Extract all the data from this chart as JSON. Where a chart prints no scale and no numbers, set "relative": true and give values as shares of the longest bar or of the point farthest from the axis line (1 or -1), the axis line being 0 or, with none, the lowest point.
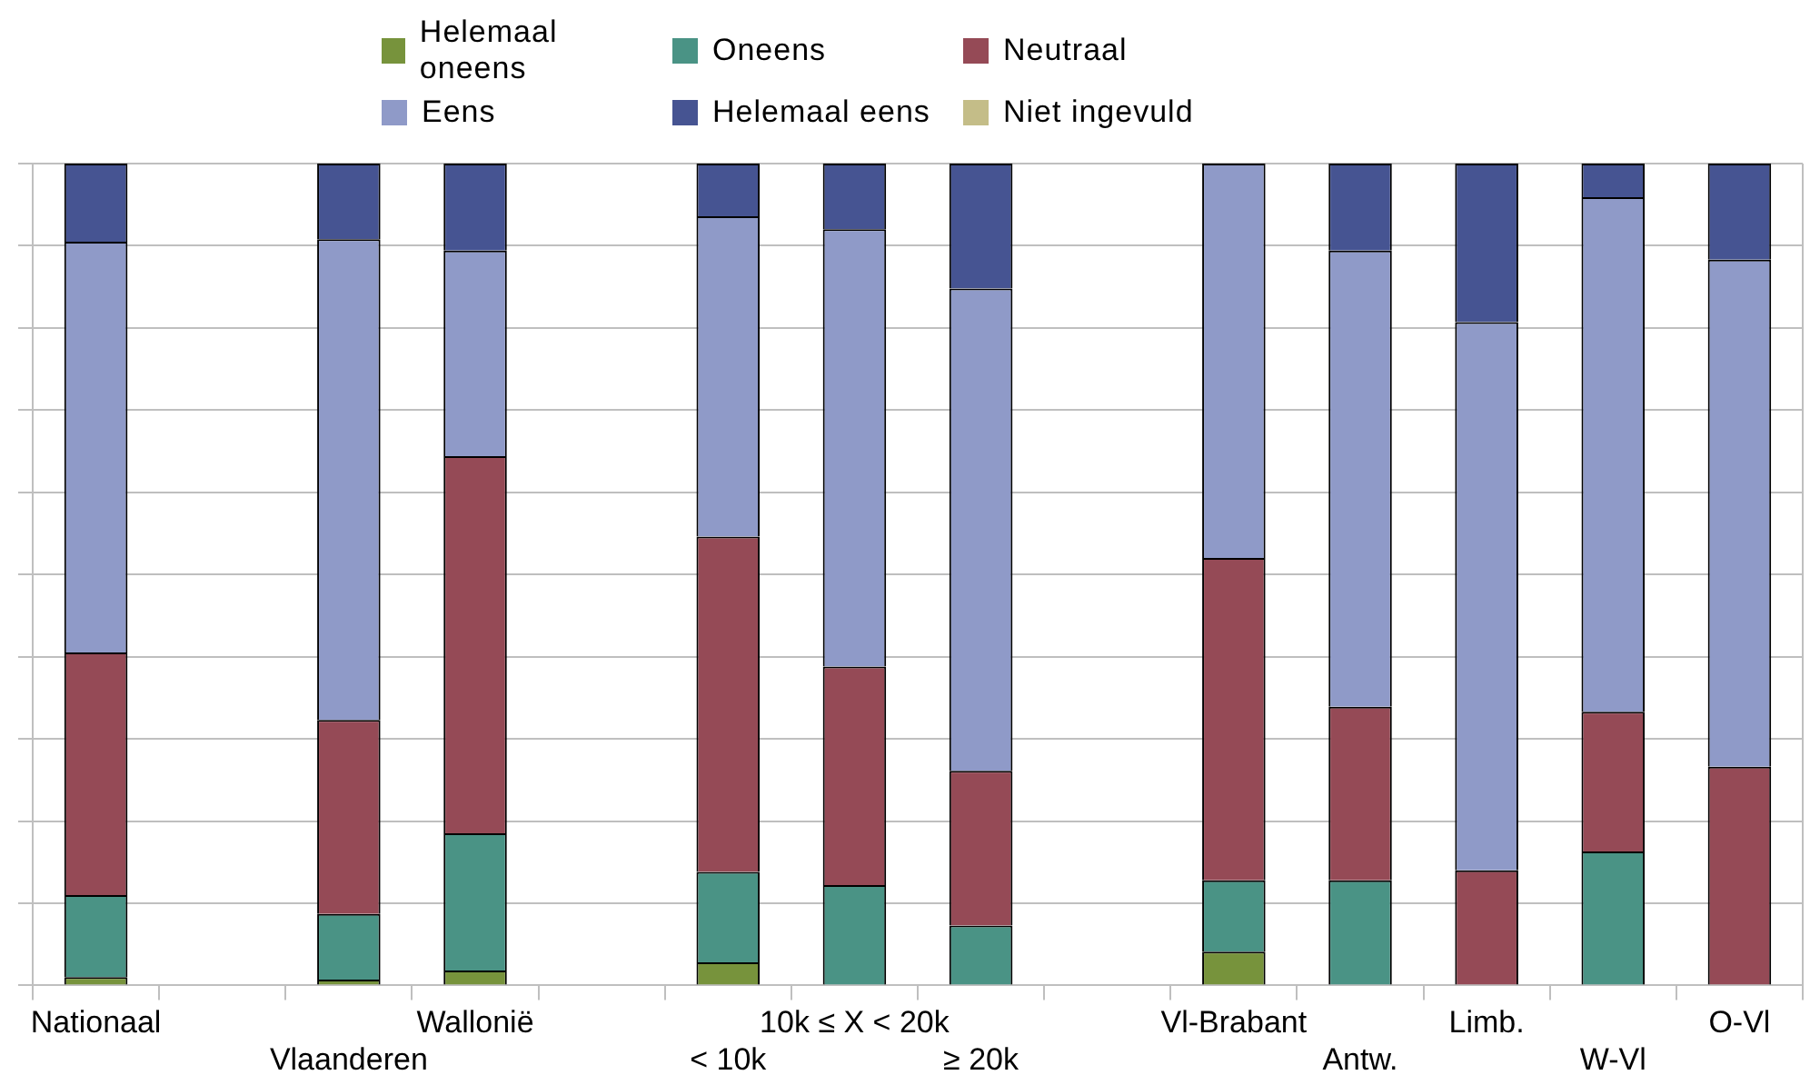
{
  "chart_data": {
    "type": "bar",
    "stacked": true,
    "relative": true,
    "grid": "y",
    "legend": "top",
    "categories": [
      "Nationaal",
      null,
      "Vlaanderen",
      "Wallonië",
      null,
      "< 10k",
      "10k ≤ X < 20k",
      "≥ 20k",
      null,
      "Vl-Brabant",
      "Antw.",
      "Limb.",
      "W-Vl",
      "O-Vl"
    ],
    "series": [
      {
        "name": "Helemaal oneens",
        "color": "#77933c",
        "values": [
          0.01,
          null,
          0.007,
          0.018,
          null,
          0.028,
          0,
          0,
          null,
          0.041,
          0,
          0,
          0,
          0
        ]
      },
      {
        "name": "Oneens",
        "color": "#4a9385",
        "values": [
          0.1,
          null,
          0.08,
          0.167,
          null,
          0.11,
          0.122,
          0.073,
          null,
          0.087,
          0.128,
          0,
          0.163,
          0
        ]
      },
      {
        "name": "Neutraal",
        "color": "#954a56",
        "values": [
          0.295,
          null,
          0.236,
          0.459,
          null,
          0.408,
          0.266,
          0.188,
          null,
          0.392,
          0.211,
          0.14,
          0.17,
          0.266
        ]
      },
      {
        "name": "Eens",
        "color": "#8f9ac8",
        "values": [
          0.5,
          null,
          0.585,
          0.25,
          null,
          0.39,
          0.532,
          0.587,
          null,
          0.48,
          0.555,
          0.667,
          0.626,
          0.617
        ]
      },
      {
        "name": "Helemaal eens",
        "color": "#465492",
        "values": [
          0.095,
          null,
          0.092,
          0.106,
          null,
          0.064,
          0.08,
          0.152,
          null,
          0,
          0.106,
          0.193,
          0.041,
          0.117
        ]
      },
      {
        "name": "Niet ingevuld",
        "color": "#c4bd88",
        "values": [
          0,
          null,
          0,
          0,
          null,
          0,
          0,
          0,
          null,
          0,
          0,
          0,
          0,
          0
        ]
      }
    ]
  }
}
